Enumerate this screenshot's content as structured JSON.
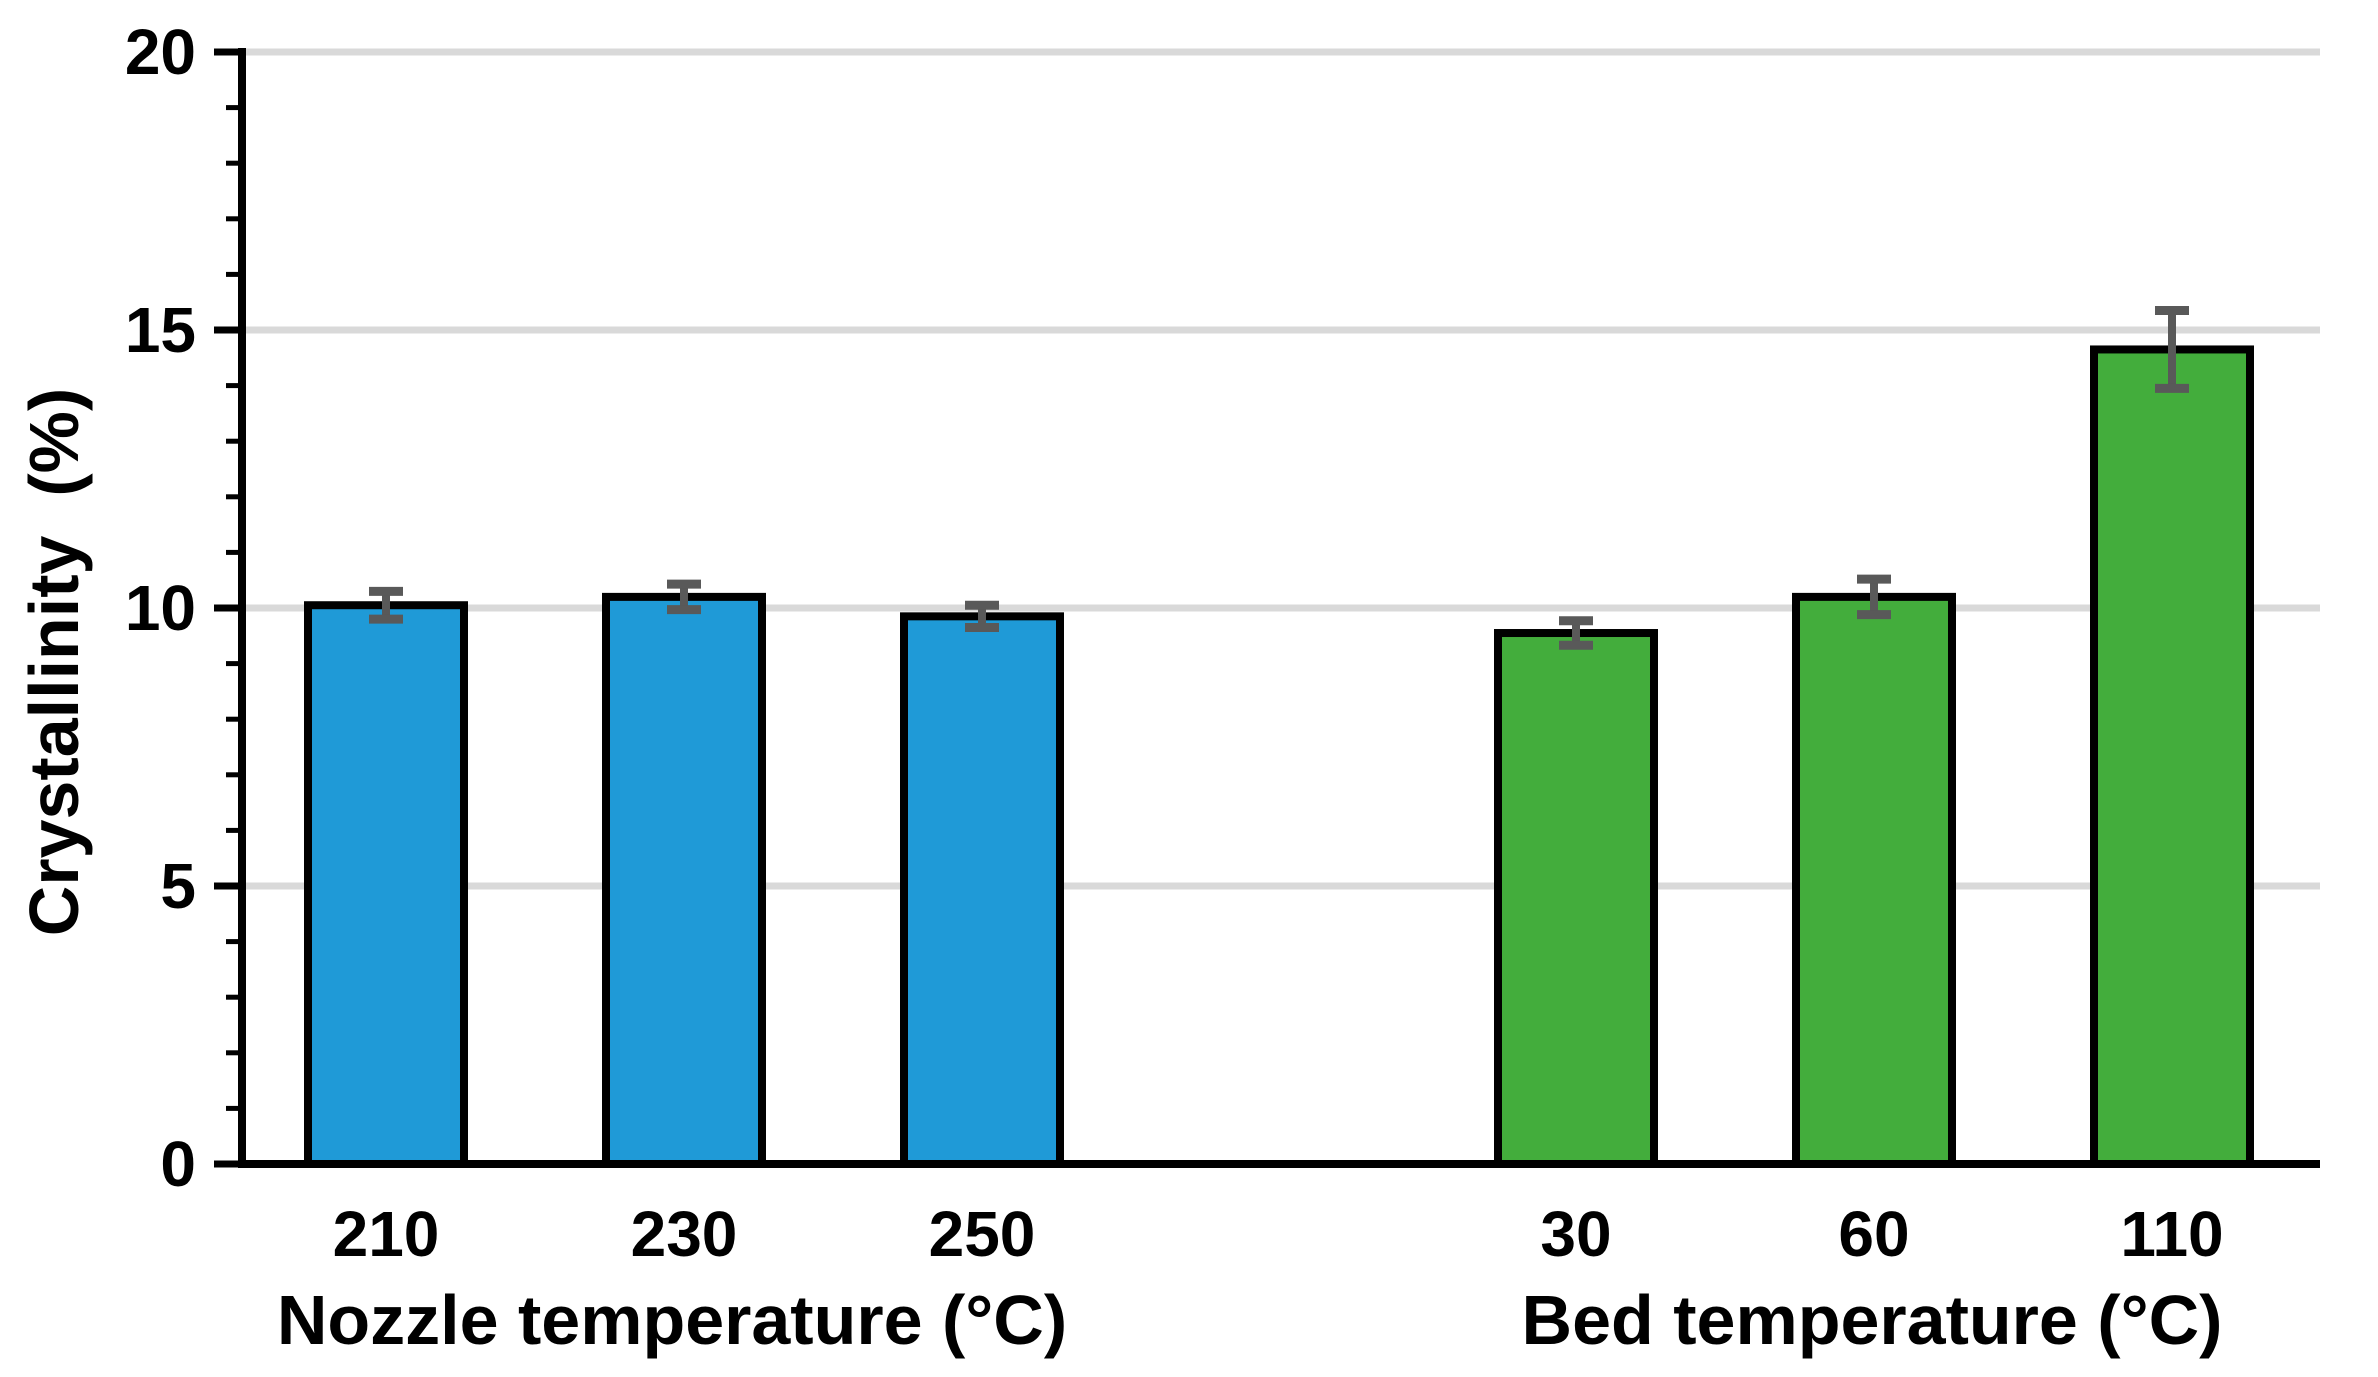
{
  "chart_data": {
    "type": "bar",
    "title": "",
    "ylabel": "Crystallinity  (%)",
    "ylim": [
      0,
      20
    ],
    "y_major_ticks": [
      0,
      5,
      10,
      15,
      20
    ],
    "y_tick_labels": [
      "0",
      "5",
      "10",
      "15",
      "20"
    ],
    "y_minor_tick_step": 1,
    "gridlines_at": [
      5,
      10,
      15,
      20
    ],
    "grid": true,
    "legend": "none",
    "groups": [
      {
        "xlabel": "Nozzle temperature (°C)",
        "bar_color": "#1F9AD7",
        "bars": [
          {
            "category": "210",
            "value": 10.05,
            "error": 0.25
          },
          {
            "category": "230",
            "value": 10.2,
            "error": 0.23
          },
          {
            "category": "250",
            "value": 9.85,
            "error": 0.2
          }
        ]
      },
      {
        "xlabel": "Bed temperature (°C)",
        "bar_color": "#43AD3C",
        "bars": [
          {
            "category": "30",
            "value": 9.55,
            "error": 0.22
          },
          {
            "category": "60",
            "value": 10.2,
            "error": 0.32
          },
          {
            "category": "110",
            "value": 14.65,
            "error": 0.7
          }
        ]
      }
    ],
    "colors": {
      "bar_stroke": "#000000",
      "error_bar": "#595959",
      "gridline": "#D9D9D9",
      "axis": "#000000",
      "text": "#000000",
      "background": "#FFFFFF"
    }
  }
}
